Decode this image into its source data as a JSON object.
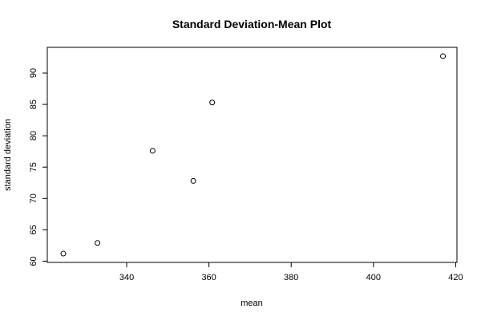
{
  "chart_data": {
    "type": "scatter",
    "title": "Standard Deviation-Mean Plot",
    "xlabel": "mean",
    "ylabel": "standard deviation",
    "xlim": [
      320.7,
      420.3
    ],
    "ylim": [
      59.8,
      94.1
    ],
    "xticks": [
      340,
      360,
      380,
      400,
      420
    ],
    "yticks": [
      60,
      65,
      70,
      75,
      80,
      85,
      90
    ],
    "grid": false,
    "legend": "none",
    "marker": "open-circle",
    "colors": {
      "points": "#000000",
      "axes": "#000000",
      "background": "#ffffff"
    },
    "points": [
      {
        "x": 324.6,
        "y": 61.2
      },
      {
        "x": 332.9,
        "y": 62.9
      },
      {
        "x": 346.3,
        "y": 77.6
      },
      {
        "x": 356.2,
        "y": 72.8
      },
      {
        "x": 360.8,
        "y": 85.3
      },
      {
        "x": 416.9,
        "y": 92.7
      }
    ]
  }
}
